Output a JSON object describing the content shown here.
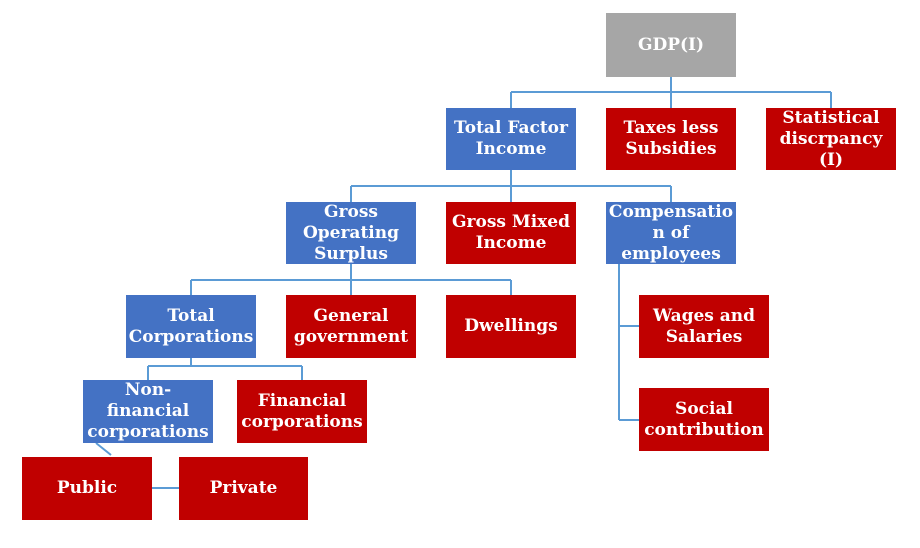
{
  "nodes": {
    "gdp": "GDP(I)",
    "total_factor_income": "Total Factor Income",
    "taxes_less_subsidies": "Taxes less Subsidies",
    "statistical_discrepancy": "Statistical discrpancy (I)",
    "gross_operating_surplus": "Gross Operating Surplus",
    "gross_mixed_income": "Gross Mixed Income",
    "compensation_of_employees": "Compensatio n of employees",
    "total_corporations": "Total Corporations",
    "general_government": "General government",
    "dwellings": "Dwellings",
    "wages_and_salaries": "Wages and Salaries",
    "social_contribution": "Social contribution",
    "non_financial_corporations": "Non-financial corporations",
    "financial_corporations": "Financial corporations",
    "public": "Public",
    "private": "Private"
  },
  "colors": {
    "gray_node": "#a6a6a6",
    "blue_node": "#4472c4",
    "red_node": "#c00000",
    "connector": "#5b9bd5"
  }
}
